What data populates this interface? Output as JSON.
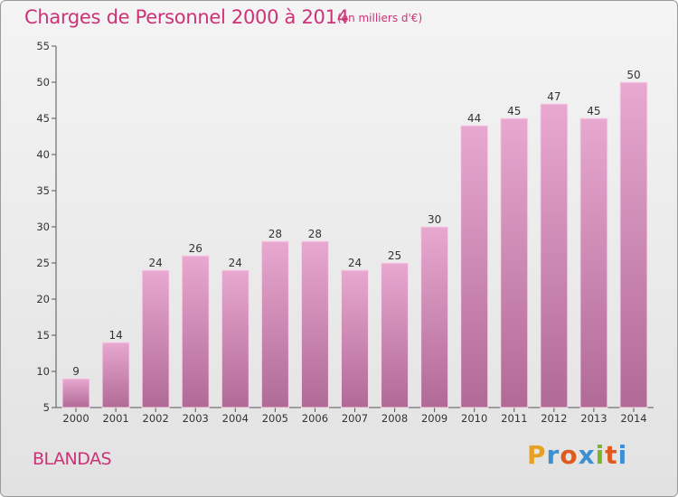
{
  "header": {
    "title": "Charges de Personnel 2000 à 2014",
    "subtitle": "(en milliers d'€)"
  },
  "footer": {
    "commune": "BLANDAS",
    "logo_text": "Proxiti"
  },
  "colors": {
    "title": "#cc3377",
    "bar_top": "#e8a8d0",
    "bar_bottom": "#b06a96",
    "logo_letters": [
      "#e8a020",
      "#3d8fd4",
      "#e05a20",
      "#3d8fd4",
      "#7ab52e",
      "#e05a20",
      "#3d8fd4"
    ]
  },
  "chart_data": {
    "type": "bar",
    "categories": [
      "2000",
      "2001",
      "2002",
      "2003",
      "2004",
      "2005",
      "2006",
      "2007",
      "2008",
      "2009",
      "2010",
      "2011",
      "2012",
      "2013",
      "2014"
    ],
    "values": [
      9,
      14,
      24,
      26,
      24,
      28,
      28,
      24,
      25,
      30,
      44,
      45,
      47,
      45,
      50
    ],
    "ylim": [
      5,
      55
    ],
    "yticks": [
      5,
      10,
      15,
      20,
      25,
      30,
      35,
      40,
      45,
      50,
      55
    ],
    "grid": false,
    "legend": "none"
  }
}
